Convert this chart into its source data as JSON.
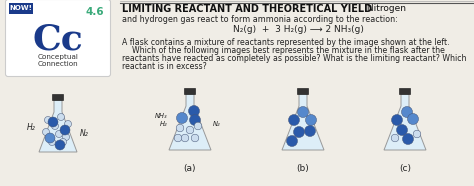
{
  "title_bold": "LIMITING REACTANT AND THEORETICAL YIELD",
  "title_normal": " Nitrogen",
  "subtitle": "and hydrogen gas react to form ammonia according to the reaction:",
  "equation": "N₂(g)  +  3 H₂(g) ⟶ 2 NH₃(g)",
  "body1": "A flask contains a mixture of reactants represented by the image shown at the left.",
  "body2": "    Which of the following images best represents the mixture in the flask after the",
  "body3": "reactants have reacted as completely as possible? What is the limiting reactant? Which",
  "body4": "reactant is in excess?",
  "cc_number": "4.6",
  "cc_letters": "Cc",
  "cc_sub1": "Conceptual",
  "cc_sub2": "Connection",
  "now_label": "NOW!",
  "flask_label_nh3": "NH₃",
  "flask_label_h2_a": "H₂",
  "flask_label_n2_a": "N₂",
  "flask_label_h2": "H₂",
  "flask_label_n2": "N₂",
  "caption_a": "(a)",
  "caption_b": "(b)",
  "caption_c": "(c)",
  "bg_color": "#f0ede6",
  "page_bg": "#f0ede6",
  "cc_box_bg": "#ffffff",
  "cc_box_border": "#cccccc",
  "cc_big_color": "#1a3a8a",
  "cc_num_color": "#3aaa7a",
  "now_bg": "#1a3a8a",
  "flask_fill": "#ddeef8",
  "flask_edge": "#999999",
  "flask_cap": "#333333",
  "dark_ball": "#2a5aaa",
  "mid_ball": "#5588cc",
  "light_ball": "#aaccdd",
  "small_ball": "#ccddee",
  "text_color": "#222222",
  "title_color": "#111111",
  "sep_line_color": "#888888",
  "cc_text_color": "#333333",
  "now_text": "#ffffff",
  "arrow_color": "#111111"
}
